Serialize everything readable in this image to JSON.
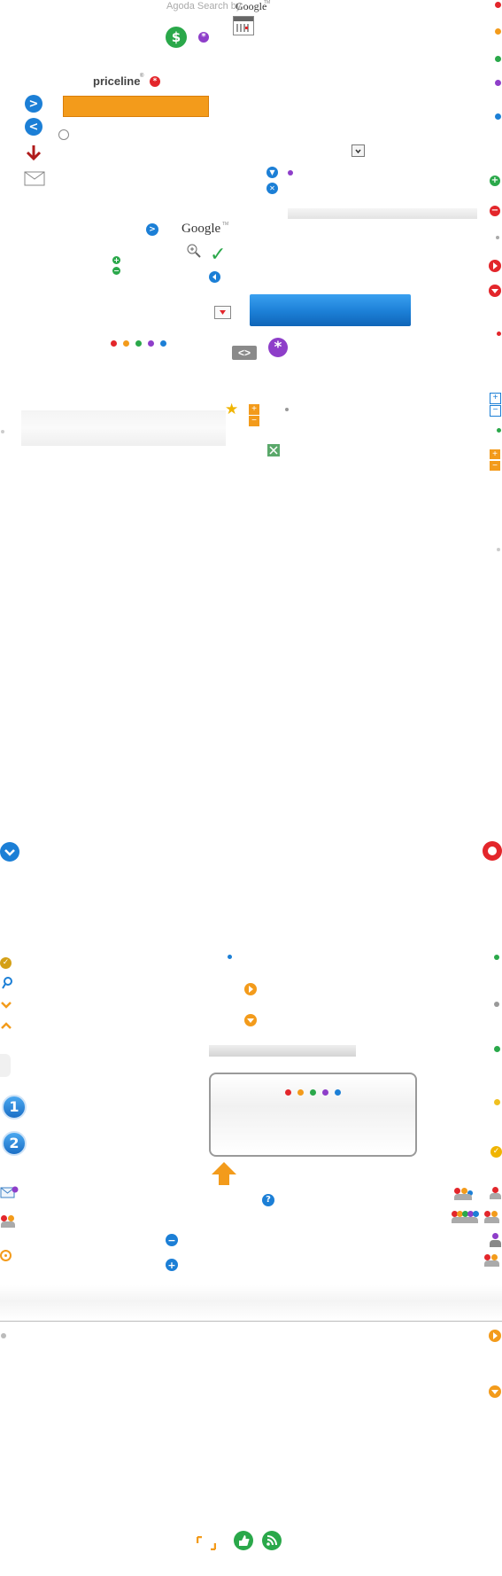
{
  "header": {
    "agoda_search": "Agoda Search by",
    "google_small": "Google",
    "google_tm": "TM"
  },
  "brand": {
    "priceline": "priceline",
    "priceline_reg": "®",
    "google_logo": "Google",
    "google_tm": "TM"
  },
  "glyphs": {
    "dollar": "$",
    "asterisk": "*",
    "next": ">",
    "prev": "<",
    "code": "<>",
    "plus": "+",
    "minus": "−",
    "number_one": "1",
    "number_two": "2",
    "question": "?",
    "checkmark": "✓",
    "down_arrow": "▼",
    "close": "✕"
  },
  "colors": {
    "blue": "#1c7fd6",
    "orange": "#f39b1b",
    "green": "#2aa84a",
    "red": "#e3262b",
    "purple": "#8e3ec9",
    "gray": "#b0b0b0",
    "gold": "#e6a817",
    "dark_red": "#b01b1b"
  }
}
